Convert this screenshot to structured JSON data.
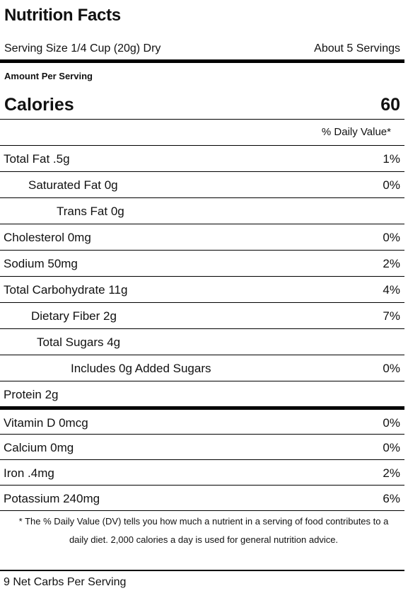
{
  "label": {
    "title": "Nutrition Facts",
    "serving_size": "Serving Size 1/4 Cup (20g) Dry",
    "servings": "About 5 Servings",
    "amount_per_serving": "Amount Per Serving",
    "calories_label": "Calories",
    "calories_value": "60",
    "dv_header": "% Daily Value*",
    "rows": [
      {
        "name": "Total Fat .5g",
        "dv": "1%"
      },
      {
        "name": "Saturated Fat 0g",
        "dv": "0%"
      },
      {
        "name": "Trans Fat 0g",
        "dv": ""
      },
      {
        "name": "Cholesterol 0mg",
        "dv": "0%"
      },
      {
        "name": "Sodium 50mg",
        "dv": "2%"
      },
      {
        "name": "Total Carbohydrate 11g",
        "dv": "4%"
      },
      {
        "name": "Dietary Fiber 2g",
        "dv": "7%"
      },
      {
        "name": "Total Sugars 4g",
        "dv": ""
      },
      {
        "name": "Includes 0g Added Sugars",
        "dv": "0%"
      },
      {
        "name": "Protein 2g",
        "dv": ""
      }
    ],
    "vitamins": [
      {
        "name": "Vitamin D 0mcg",
        "dv": "0%"
      },
      {
        "name": "Calcium 0mg",
        "dv": "0%"
      },
      {
        "name": "Iron .4mg",
        "dv": "2%"
      },
      {
        "name": "Potassium 240mg",
        "dv": "6%"
      }
    ],
    "footnote": "* The % Daily Value (DV) tells you how much a nutrient in a serving of food contributes to a daily diet. 2,000 calories a day is used for general nutrition advice.",
    "net_carbs": "9 Net Carbs Per Serving"
  }
}
